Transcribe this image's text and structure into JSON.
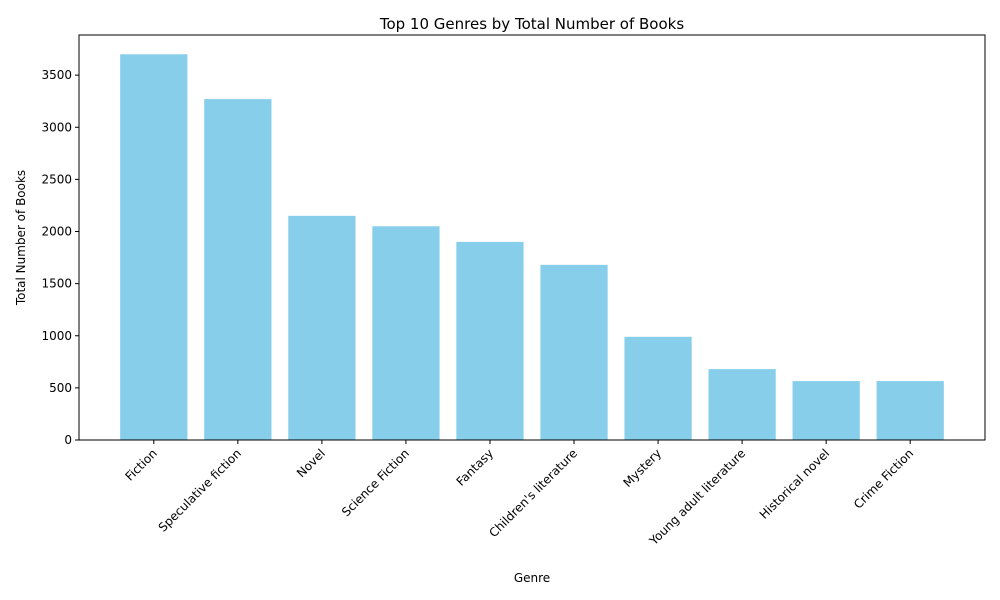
{
  "chart_data": {
    "type": "bar",
    "title": "Top 10 Genres by Total Number of Books",
    "xlabel": "Genre",
    "ylabel": "Total Number of Books",
    "categories": [
      "Fiction",
      "Speculative fiction",
      "Novel",
      "Science Fiction",
      "Fantasy",
      "Children's literature",
      "Mystery",
      "Young adult literature",
      "Historical novel",
      "Crime Fiction"
    ],
    "values": [
      3700,
      3270,
      2150,
      2050,
      1900,
      1680,
      990,
      680,
      565,
      565
    ],
    "ylim": [
      0,
      3885
    ],
    "yticks": [
      0,
      500,
      1000,
      1500,
      2000,
      2500,
      3000,
      3500
    ],
    "bar_color": "#87ceeb",
    "grid": false,
    "legend": "none",
    "xtick_rotation": 45
  }
}
